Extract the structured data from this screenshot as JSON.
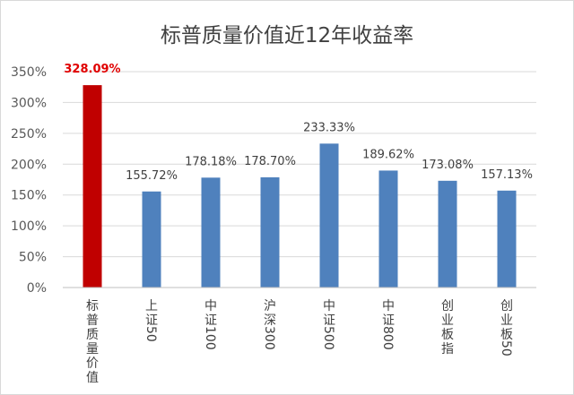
{
  "colors": {
    "highlight": "#c00000",
    "bar": "#4f81bd",
    "grid": "#d9d9d9",
    "highlight_label": "#e00000"
  },
  "chart_data": {
    "type": "bar",
    "title": "标普质量价值近12年收益率",
    "categories": [
      "标普质量价值",
      "上证50",
      "中证100",
      "沪深300",
      "中证500",
      "中证800",
      "创业板指",
      "创业板50"
    ],
    "values": [
      328.09,
      155.72,
      178.18,
      178.7,
      233.33,
      189.62,
      173.08,
      157.13
    ],
    "data_labels": [
      "328.09%",
      "155.72%",
      "178.18%",
      "178.70%",
      "233.33%",
      "189.62%",
      "173.08%",
      "157.13%"
    ],
    "highlight_index": 0,
    "ylim": [
      0,
      350
    ],
    "y_ticks": [
      "0%",
      "50%",
      "100%",
      "150%",
      "200%",
      "250%",
      "300%",
      "350%"
    ],
    "grid": true,
    "legend": "none",
    "xlabel": "",
    "ylabel": ""
  }
}
